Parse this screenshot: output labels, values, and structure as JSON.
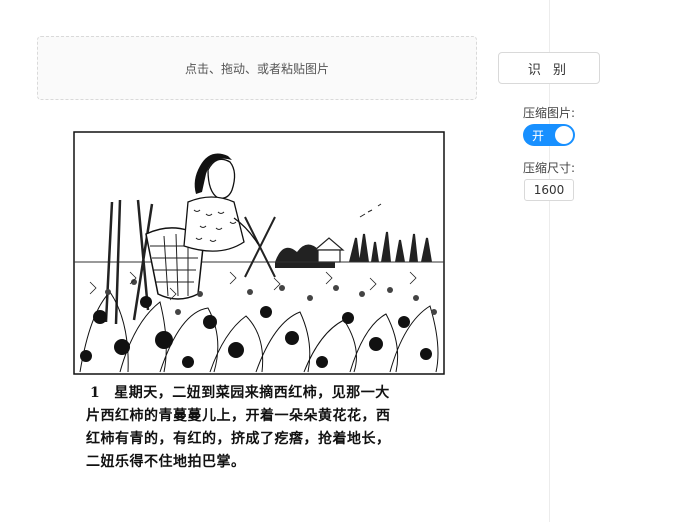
{
  "upload": {
    "hint": "点击、拖动、或者粘贴图片"
  },
  "controls": {
    "recognize_label": "识 别",
    "compress_image_label": "压缩图片:",
    "compress_toggle_text": "开",
    "compress_toggle_on": true,
    "compress_size_label": "压缩尺寸:",
    "compress_size_value": "1600"
  },
  "caption": {
    "number": "1",
    "line1": "星期天，二妞到菜园来摘西红柿，见那一大",
    "line2": "片西红柿的青蔓蔓儿上，开着一朵朵黄花花，西",
    "line3": "红柿有青的，有红的，挤成了疙瘩，抢着地长，",
    "line4": "二妞乐得不住地拍巴掌。"
  },
  "colors": {
    "accent": "#1890ff"
  }
}
